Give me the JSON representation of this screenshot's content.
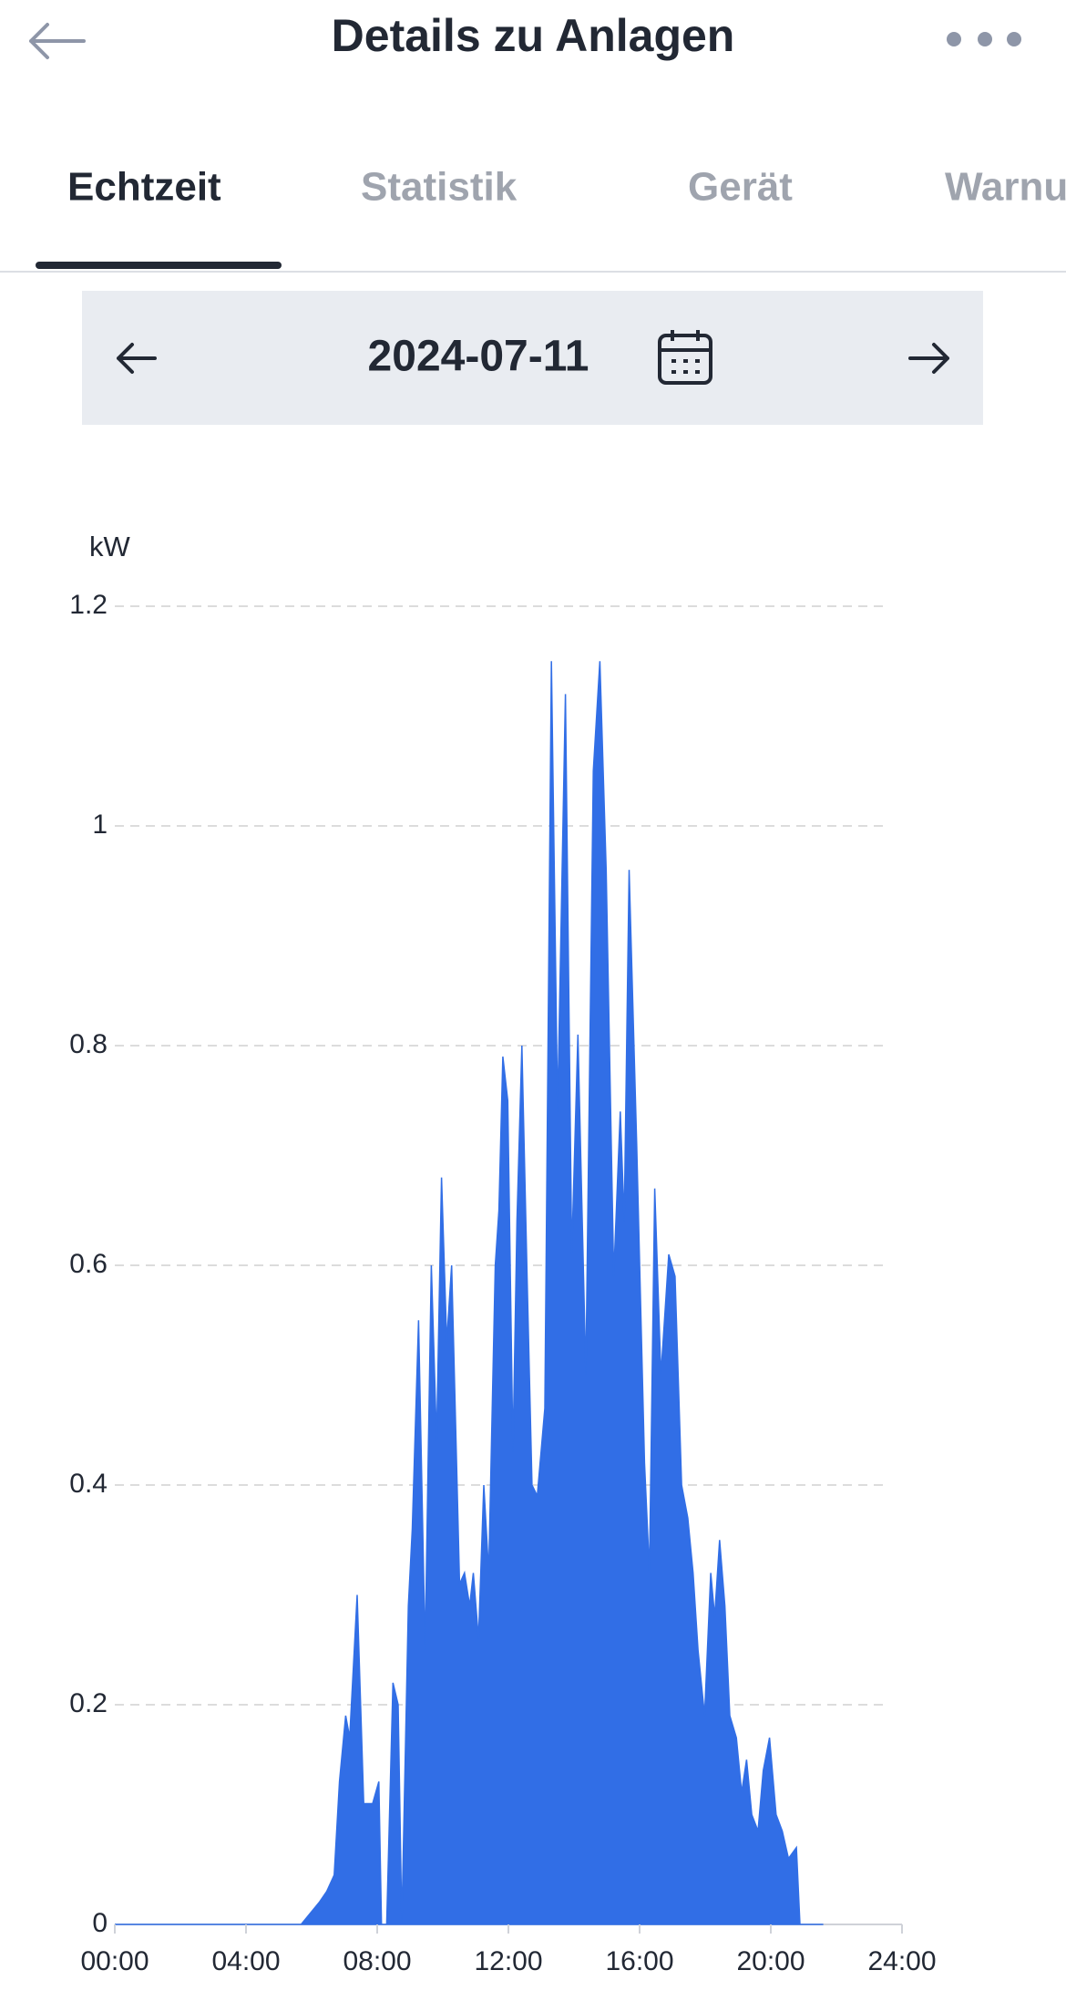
{
  "header": {
    "title": "Details zu Anlagen"
  },
  "tabs": [
    "Echtzeit",
    "Statistik",
    "Gerät",
    "Warnu"
  ],
  "date": "2024-07-11",
  "chart_data": {
    "type": "area",
    "y_label": "kW",
    "color": "#316ee6",
    "grid": true,
    "x": [
      0,
      5.68,
      6.23,
      6.46,
      6.69,
      6.85,
      7.04,
      7.16,
      7.39,
      7.59,
      7.86,
      8.05,
      8.13,
      8.29,
      8.48,
      8.64,
      8.75,
      8.95,
      9.07,
      9.26,
      9.46,
      9.65,
      9.81,
      9.96,
      10.12,
      10.27,
      10.51,
      10.66,
      10.82,
      10.93,
      11.09,
      11.25,
      11.4,
      11.6,
      11.71,
      11.83,
      11.98,
      12.14,
      12.26,
      12.41,
      12.57,
      12.72,
      12.88,
      13.11,
      13.31,
      13.5,
      13.74,
      13.93,
      14.12,
      14.36,
      14.59,
      14.79,
      14.98,
      15.21,
      15.41,
      15.53,
      15.68,
      15.91,
      16.15,
      16.3,
      16.46,
      16.65,
      16.89,
      17.08,
      17.28,
      17.47,
      17.63,
      17.78,
      17.98,
      18.17,
      18.29,
      18.44,
      18.6,
      18.75,
      18.95,
      19.11,
      19.26,
      19.42,
      19.61,
      19.77,
      19.96,
      20.16,
      20.35,
      20.54,
      20.78,
      20.89,
      21.6
    ],
    "values": [
      0,
      0,
      0.02,
      0.03,
      0.045,
      0.13,
      0.19,
      0.17,
      0.3,
      0.11,
      0.11,
      0.13,
      0,
      0,
      0.22,
      0.2,
      0,
      0.29,
      0.36,
      0.55,
      0.25,
      0.6,
      0.44,
      0.68,
      0.53,
      0.6,
      0.31,
      0.32,
      0.29,
      0.32,
      0.26,
      0.4,
      0.32,
      0.6,
      0.65,
      0.79,
      0.75,
      0.43,
      0.64,
      0.8,
      0.59,
      0.4,
      0.39,
      0.47,
      1.15,
      0.74,
      1.12,
      0.61,
      0.81,
      0.5,
      1.05,
      1.15,
      0.96,
      0.59,
      0.74,
      0.64,
      0.96,
      0.71,
      0.42,
      0.32,
      0.67,
      0.5,
      0.61,
      0.59,
      0.4,
      0.37,
      0.32,
      0.25,
      0.19,
      0.32,
      0.28,
      0.35,
      0.29,
      0.19,
      0.17,
      0.12,
      0.15,
      0.1,
      0.085,
      0.14,
      0.17,
      0.1,
      0.085,
      0.06,
      0.07,
      0,
      0
    ],
    "xlim": [
      0,
      24
    ],
    "xticks": [
      {
        "value": 0,
        "label": "00:00"
      },
      {
        "value": 4,
        "label": "04:00"
      },
      {
        "value": 8,
        "label": "08:00"
      },
      {
        "value": 12,
        "label": "12:00"
      },
      {
        "value": 16,
        "label": "16:00"
      },
      {
        "value": 20,
        "label": "20:00"
      },
      {
        "value": 24,
        "label": "24:00"
      }
    ],
    "ylim": [
      0,
      1.2
    ],
    "yticks": [
      0,
      0.2,
      0.4,
      0.6,
      0.8,
      1,
      1.2
    ]
  }
}
